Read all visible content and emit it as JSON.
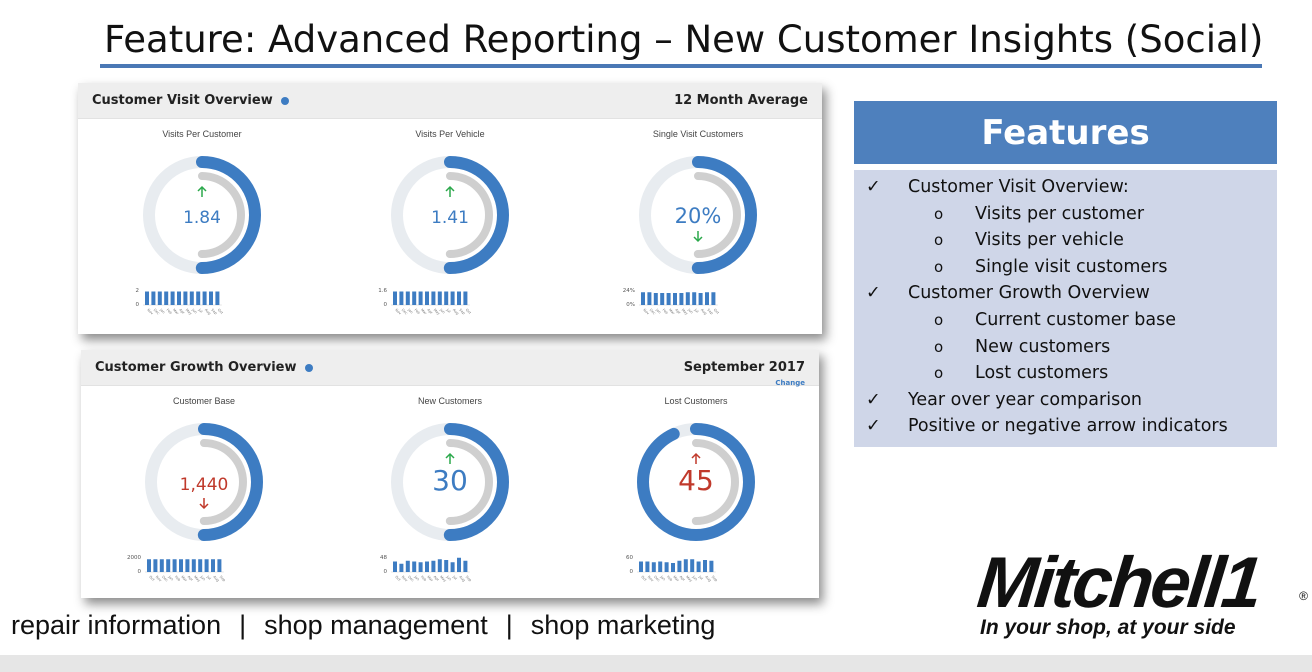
{
  "slide": {
    "title": "Feature: Advanced Reporting – New Customer Insights (Social)"
  },
  "visit_panel": {
    "title": "Customer Visit Overview",
    "period": "12 Month Average",
    "gauges": [
      {
        "label": "Visits Per Customer",
        "value": "1.84",
        "arrow": "up",
        "value_color": "#3d7cc2",
        "arrow_color": "#2aa84a",
        "fraction": 0.5,
        "y_max": "2",
        "y_min": "0",
        "bars": [
          0.9,
          0.9,
          0.9,
          0.9,
          0.9,
          0.9,
          0.9,
          0.9,
          0.9,
          0.9,
          0.9,
          0.9
        ],
        "months": [
          "Nov",
          "Dec",
          "Jan",
          "Feb",
          "Mar",
          "Apr",
          "May",
          "Jun",
          "Jul",
          "Aug",
          "Sep",
          "Oct"
        ]
      },
      {
        "label": "Visits Per Vehicle",
        "value": "1.41",
        "arrow": "up",
        "value_color": "#3d7cc2",
        "arrow_color": "#2aa84a",
        "fraction": 0.5,
        "y_max": "1.6",
        "y_min": "0",
        "bars": [
          0.9,
          0.9,
          0.9,
          0.9,
          0.9,
          0.9,
          0.9,
          0.9,
          0.9,
          0.9,
          0.9,
          0.9
        ],
        "months": [
          "Nov",
          "Dec",
          "Jan",
          "Feb",
          "Mar",
          "Apr",
          "May",
          "Jun",
          "Jul",
          "Aug",
          "Sep",
          "Oct"
        ]
      },
      {
        "label": "Single Visit Customers",
        "value": "20%",
        "arrow": "down",
        "value_color": "#3d7cc2",
        "arrow_color": "#2aa84a",
        "fraction": 0.5,
        "y_max": "24%",
        "y_min": "0%",
        "bars": [
          0.85,
          0.85,
          0.8,
          0.8,
          0.8,
          0.8,
          0.8,
          0.85,
          0.85,
          0.8,
          0.85,
          0.85
        ],
        "months": [
          "Nov",
          "Dec",
          "Jan",
          "Feb",
          "Mar",
          "Apr",
          "May",
          "Jun",
          "Jul",
          "Aug",
          "Sep",
          "Oct"
        ]
      }
    ]
  },
  "growth_panel": {
    "title": "Customer Growth Overview",
    "period": "September 2017",
    "change_link": "Change",
    "gauges": [
      {
        "label": "Customer Base",
        "value": "1,440",
        "arrow": "down",
        "value_color": "#c0392b",
        "arrow_color": "#c0392b",
        "fraction": 0.5,
        "y_max": "2000",
        "y_min": "0",
        "bars": [
          0.85,
          0.85,
          0.85,
          0.85,
          0.85,
          0.85,
          0.85,
          0.85,
          0.85,
          0.85,
          0.85,
          0.85
        ],
        "months": [
          "Oct",
          "Nov",
          "Dec",
          "Jan",
          "Feb",
          "Mar",
          "Apr",
          "May",
          "Jun",
          "Jul",
          "Aug",
          "Sep"
        ]
      },
      {
        "label": "New Customers",
        "value": "30",
        "arrow": "up",
        "value_color": "#3d7cc2",
        "arrow_color": "#2aa84a",
        "fraction": 0.5,
        "y_max": "48",
        "y_min": "0",
        "bars": [
          0.7,
          0.55,
          0.75,
          0.7,
          0.65,
          0.7,
          0.75,
          0.85,
          0.8,
          0.65,
          0.95,
          0.75
        ],
        "months": [
          "Oct",
          "Nov",
          "Dec",
          "Jan",
          "Feb",
          "Mar",
          "Apr",
          "May",
          "Jun",
          "Jul",
          "Aug",
          "Sep"
        ]
      },
      {
        "label": "Lost Customers",
        "value": "45",
        "arrow": "up",
        "value_color": "#c0392b",
        "arrow_color": "#c0392b",
        "fraction": 0.93,
        "y_max": "60",
        "y_min": "0",
        "bars": [
          0.7,
          0.7,
          0.65,
          0.7,
          0.65,
          0.6,
          0.75,
          0.85,
          0.85,
          0.7,
          0.8,
          0.75
        ],
        "months": [
          "Oct",
          "Nov",
          "Dec",
          "Jan",
          "Feb",
          "Mar",
          "Apr",
          "May",
          "Jun",
          "Jul",
          "Aug",
          "Sep"
        ]
      }
    ]
  },
  "features": {
    "heading": "Features",
    "check_symbol": "✓",
    "bullet_symbol": "o",
    "items": [
      {
        "level": 1,
        "text": "Customer Visit Overview:"
      },
      {
        "level": 2,
        "text": "Visits per customer"
      },
      {
        "level": 2,
        "text": "Visits per vehicle"
      },
      {
        "level": 2,
        "text": "Single visit customers"
      },
      {
        "level": 1,
        "text": "Customer Growth Overview"
      },
      {
        "level": 2,
        "text": "Current customer base"
      },
      {
        "level": 2,
        "text": "New customers"
      },
      {
        "level": 2,
        "text": "Lost customers"
      },
      {
        "level": 1,
        "text": "Year over year comparison"
      },
      {
        "level": 1,
        "text": "Positive or negative arrow indicators"
      }
    ]
  },
  "footer": {
    "tagline": [
      "repair information",
      "shop management",
      "shop marketing"
    ],
    "separator": "|",
    "logo_text": "Mitchell1",
    "logo_registered": "®",
    "logo_slogan": "In your shop, at your side"
  },
  "colors": {
    "accent_blue": "#4e80bd",
    "gauge_blue": "#3d7cc2",
    "gauge_track": "#e8ecf0",
    "gauge_inner": "#cfcfcf",
    "features_bg": "#cfd6e8"
  }
}
